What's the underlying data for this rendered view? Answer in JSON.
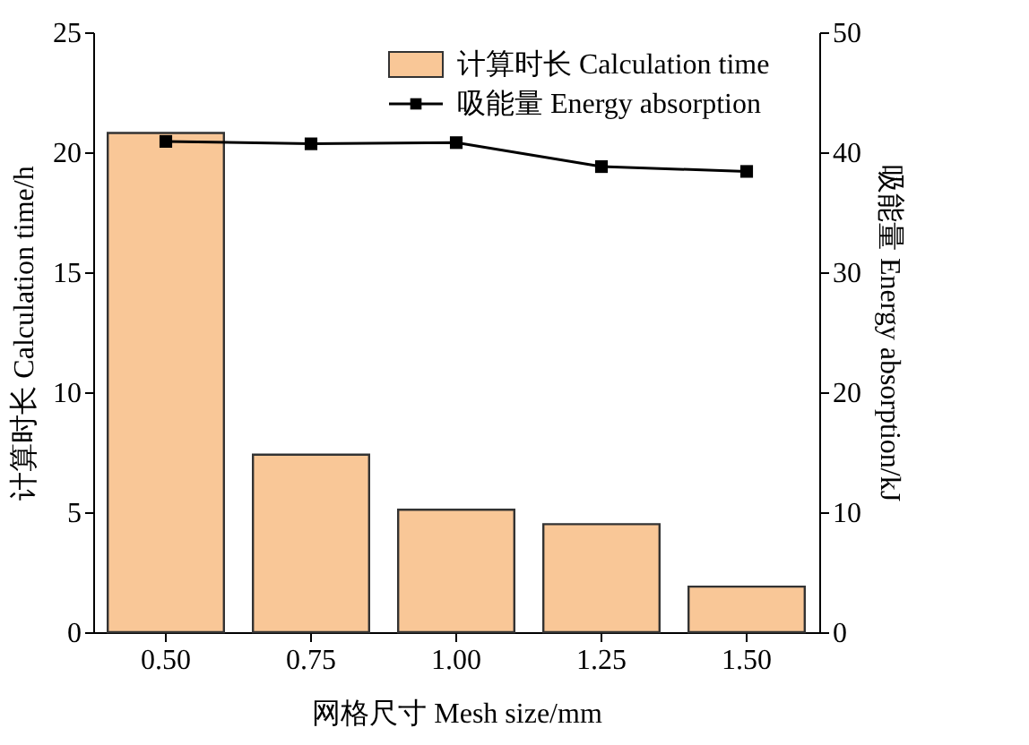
{
  "chart_data": {
    "type": "bar",
    "xlabel": "网格尺寸 Mesh size/mm",
    "ylabel": "计算时长 Calculation time/h",
    "y2label": "吸能量 Energy absorption/kJ",
    "categories": [
      "0.50",
      "0.75",
      "1.00",
      "1.25",
      "1.50"
    ],
    "series": [
      {
        "name": "计算时长 Calculation time",
        "color": "#f9c797",
        "values": [
          20.8,
          7.4,
          5.1,
          4.5,
          1.9
        ]
      },
      {
        "name": "吸能量 Energy absorption",
        "type": "line",
        "axis": "y2",
        "color": "#000000",
        "marker": "square",
        "values": [
          40.9,
          40.7,
          40.8,
          38.8,
          38.4
        ]
      }
    ],
    "ylim": [
      0,
      25
    ],
    "yticks": [
      0,
      5,
      10,
      15,
      20,
      25
    ],
    "y2lim": [
      0,
      50
    ],
    "y2ticks": [
      0,
      10,
      20,
      30,
      40,
      50
    ],
    "legend": "top right",
    "grid": false
  }
}
